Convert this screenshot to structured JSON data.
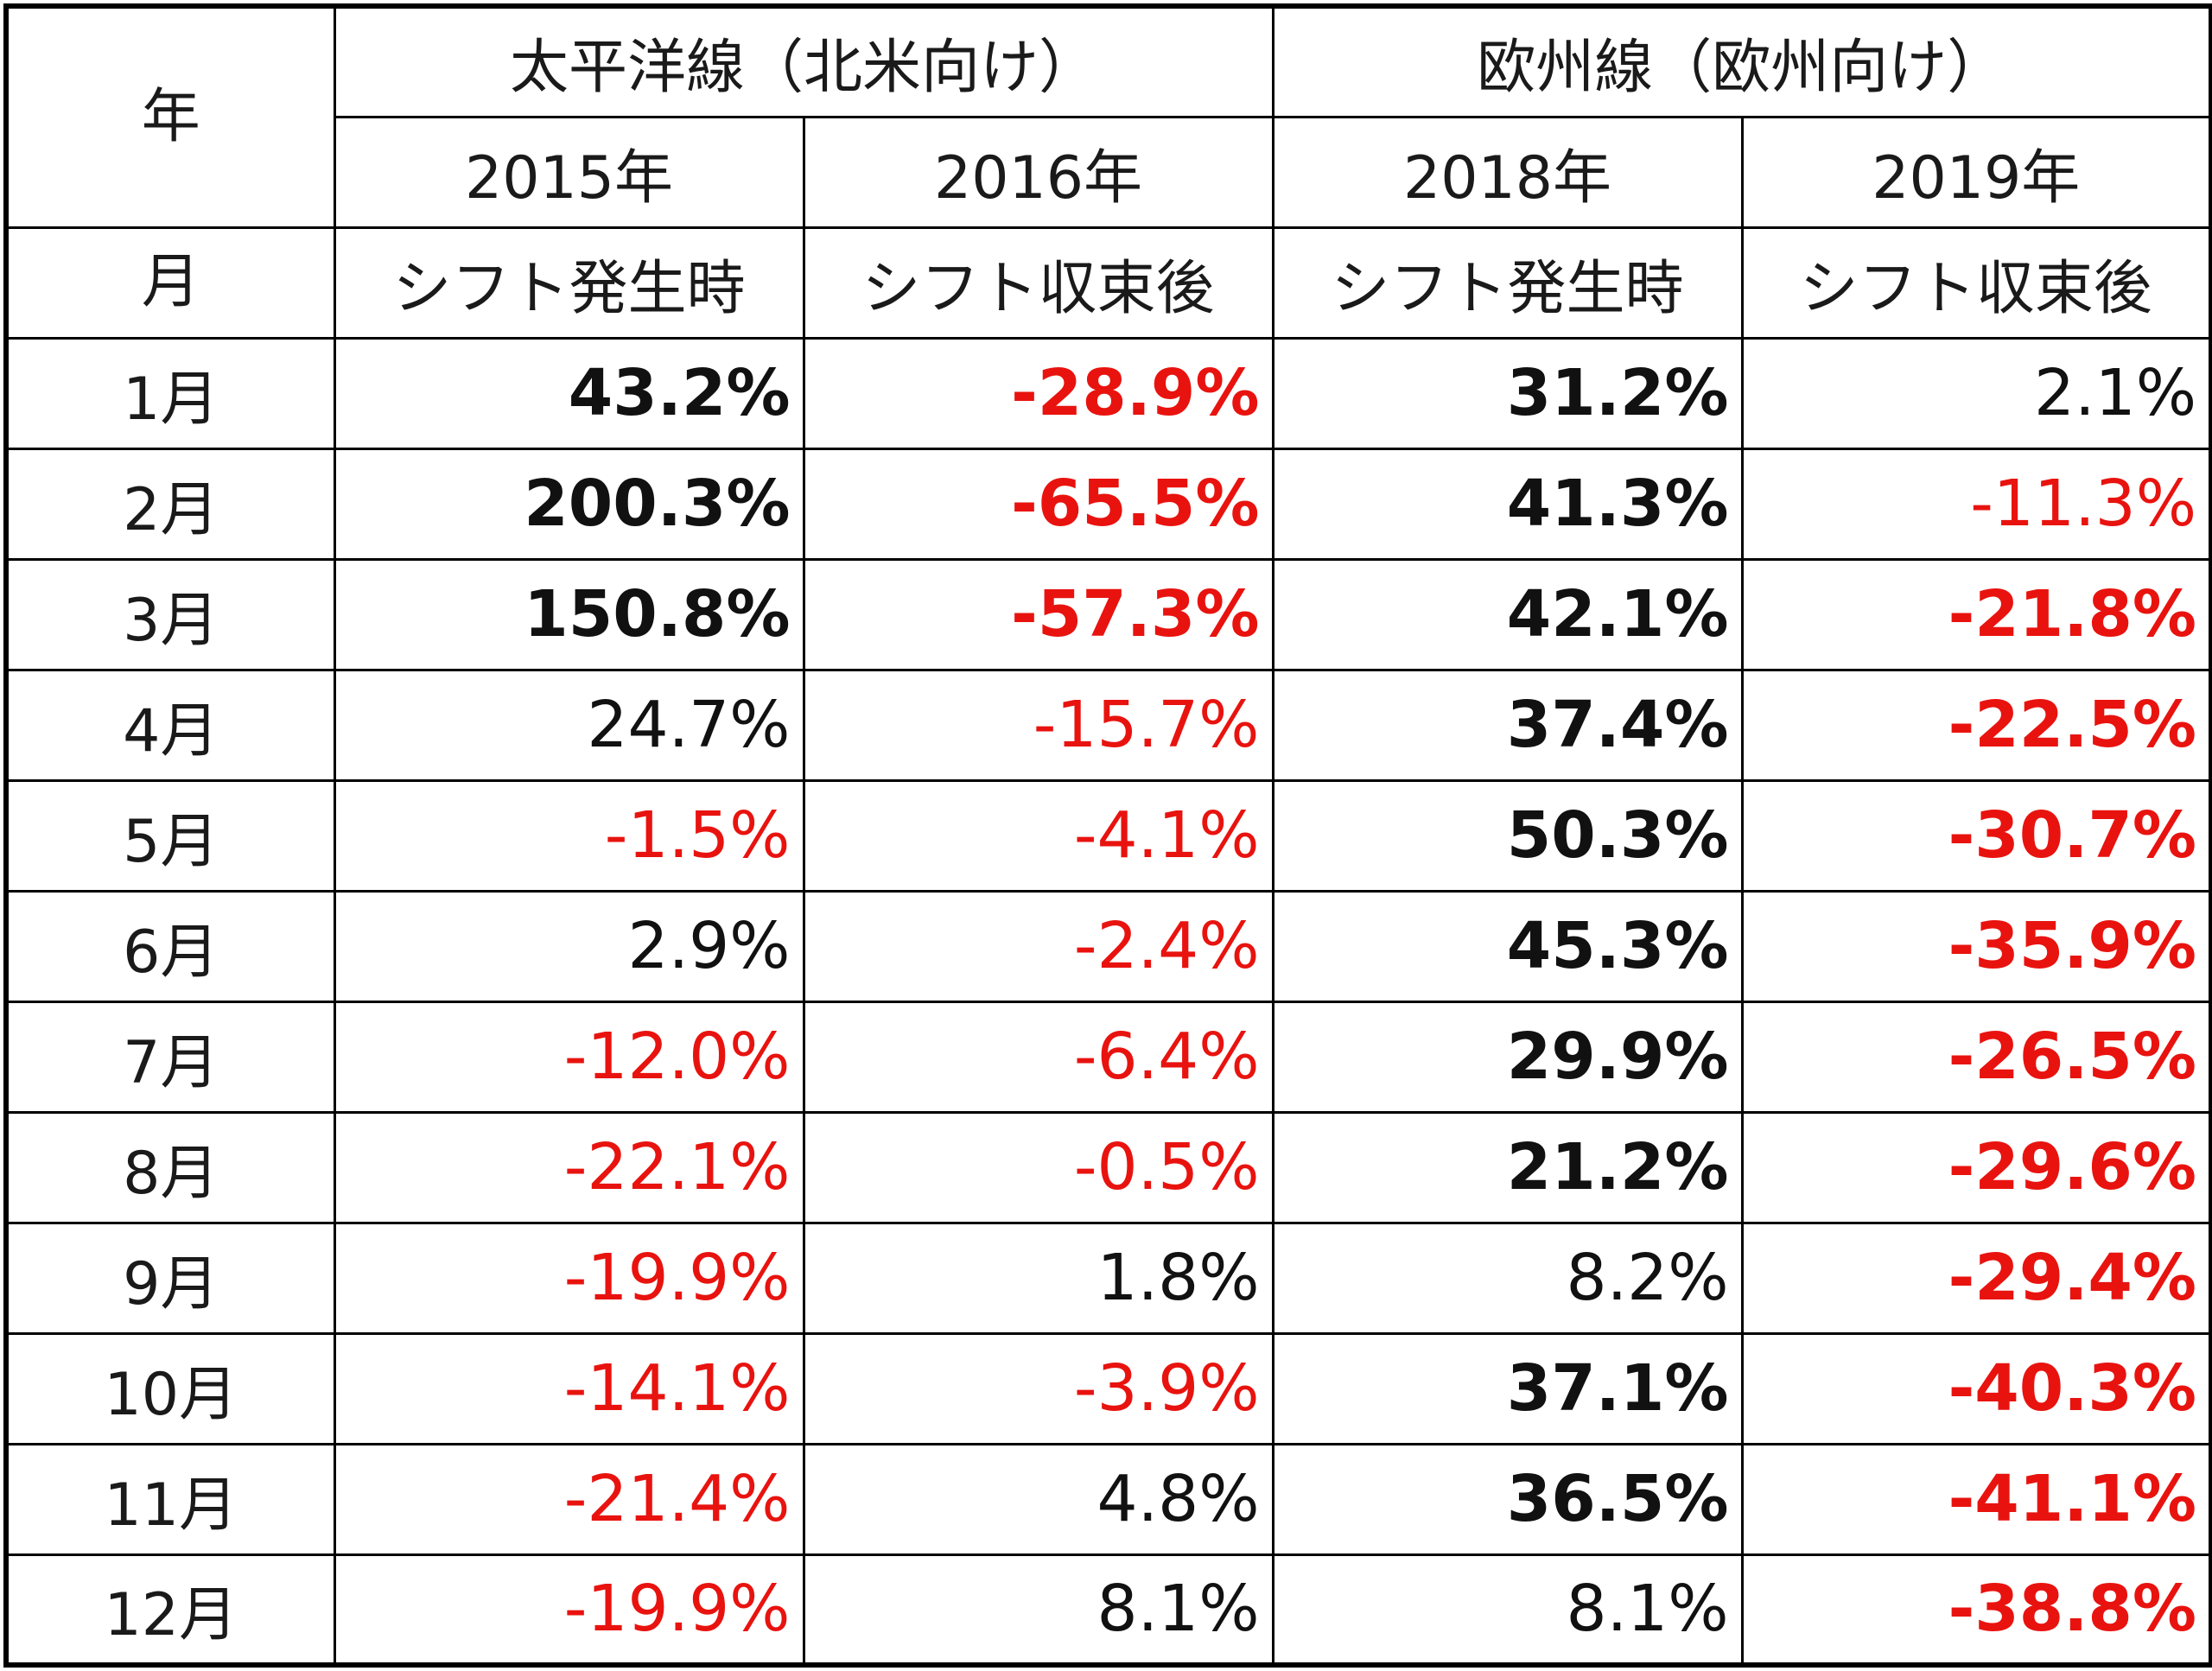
{
  "header": {
    "corner_year": "年",
    "corner_month": "月",
    "groups": [
      {
        "label": "太平洋線（北米向け）"
      },
      {
        "label": "欧州線（欧州向け）"
      }
    ],
    "years": [
      "2015年",
      "2016年",
      "2018年",
      "2019年"
    ],
    "phases": [
      "シフト発生時",
      "シフト収束後",
      "シフト発生時",
      "シフト収束後"
    ]
  },
  "rows": [
    {
      "month": "1月",
      "cells": [
        {
          "text": "43.2%",
          "bold": true,
          "neg": false
        },
        {
          "text": "-28.9%",
          "bold": true,
          "neg": true
        },
        {
          "text": "31.2%",
          "bold": true,
          "neg": false
        },
        {
          "text": "2.1%",
          "bold": false,
          "neg": false
        }
      ]
    },
    {
      "month": "2月",
      "cells": [
        {
          "text": "200.3%",
          "bold": true,
          "neg": false
        },
        {
          "text": "-65.5%",
          "bold": true,
          "neg": true
        },
        {
          "text": "41.3%",
          "bold": true,
          "neg": false
        },
        {
          "text": "-11.3%",
          "bold": false,
          "neg": true
        }
      ]
    },
    {
      "month": "3月",
      "cells": [
        {
          "text": "150.8%",
          "bold": true,
          "neg": false
        },
        {
          "text": "-57.3%",
          "bold": true,
          "neg": true
        },
        {
          "text": "42.1%",
          "bold": true,
          "neg": false
        },
        {
          "text": "-21.8%",
          "bold": true,
          "neg": true
        }
      ]
    },
    {
      "month": "4月",
      "cells": [
        {
          "text": "24.7%",
          "bold": false,
          "neg": false
        },
        {
          "text": "-15.7%",
          "bold": false,
          "neg": true
        },
        {
          "text": "37.4%",
          "bold": true,
          "neg": false
        },
        {
          "text": "-22.5%",
          "bold": true,
          "neg": true
        }
      ]
    },
    {
      "month": "5月",
      "cells": [
        {
          "text": "-1.5%",
          "bold": false,
          "neg": true
        },
        {
          "text": "-4.1%",
          "bold": false,
          "neg": true
        },
        {
          "text": "50.3%",
          "bold": true,
          "neg": false
        },
        {
          "text": "-30.7%",
          "bold": true,
          "neg": true
        }
      ]
    },
    {
      "month": "6月",
      "cells": [
        {
          "text": "2.9%",
          "bold": false,
          "neg": false
        },
        {
          "text": "-2.4%",
          "bold": false,
          "neg": true
        },
        {
          "text": "45.3%",
          "bold": true,
          "neg": false
        },
        {
          "text": "-35.9%",
          "bold": true,
          "neg": true
        }
      ]
    },
    {
      "month": "7月",
      "cells": [
        {
          "text": "-12.0%",
          "bold": false,
          "neg": true
        },
        {
          "text": "-6.4%",
          "bold": false,
          "neg": true
        },
        {
          "text": "29.9%",
          "bold": true,
          "neg": false
        },
        {
          "text": "-26.5%",
          "bold": true,
          "neg": true
        }
      ]
    },
    {
      "month": "8月",
      "cells": [
        {
          "text": "-22.1%",
          "bold": false,
          "neg": true
        },
        {
          "text": "-0.5%",
          "bold": false,
          "neg": true
        },
        {
          "text": "21.2%",
          "bold": true,
          "neg": false
        },
        {
          "text": "-29.6%",
          "bold": true,
          "neg": true
        }
      ]
    },
    {
      "month": "9月",
      "cells": [
        {
          "text": "-19.9%",
          "bold": false,
          "neg": true
        },
        {
          "text": "1.8%",
          "bold": false,
          "neg": false
        },
        {
          "text": "8.2%",
          "bold": false,
          "neg": false
        },
        {
          "text": "-29.4%",
          "bold": true,
          "neg": true
        }
      ]
    },
    {
      "month": "10月",
      "cells": [
        {
          "text": "-14.1%",
          "bold": false,
          "neg": true
        },
        {
          "text": "-3.9%",
          "bold": false,
          "neg": true
        },
        {
          "text": "37.1%",
          "bold": true,
          "neg": false
        },
        {
          "text": "-40.3%",
          "bold": true,
          "neg": true
        }
      ]
    },
    {
      "month": "11月",
      "cells": [
        {
          "text": "-21.4%",
          "bold": false,
          "neg": true
        },
        {
          "text": "4.8%",
          "bold": false,
          "neg": false
        },
        {
          "text": "36.5%",
          "bold": true,
          "neg": false
        },
        {
          "text": "-41.1%",
          "bold": true,
          "neg": true
        }
      ]
    },
    {
      "month": "12月",
      "cells": [
        {
          "text": "-19.9%",
          "bold": false,
          "neg": true
        },
        {
          "text": "8.1%",
          "bold": false,
          "neg": false
        },
        {
          "text": "8.1%",
          "bold": false,
          "neg": false
        },
        {
          "text": "-38.8%",
          "bold": true,
          "neg": true
        }
      ]
    }
  ],
  "colors": {
    "positive": "#111111",
    "negative": "#e8130f",
    "border": "#000000"
  }
}
